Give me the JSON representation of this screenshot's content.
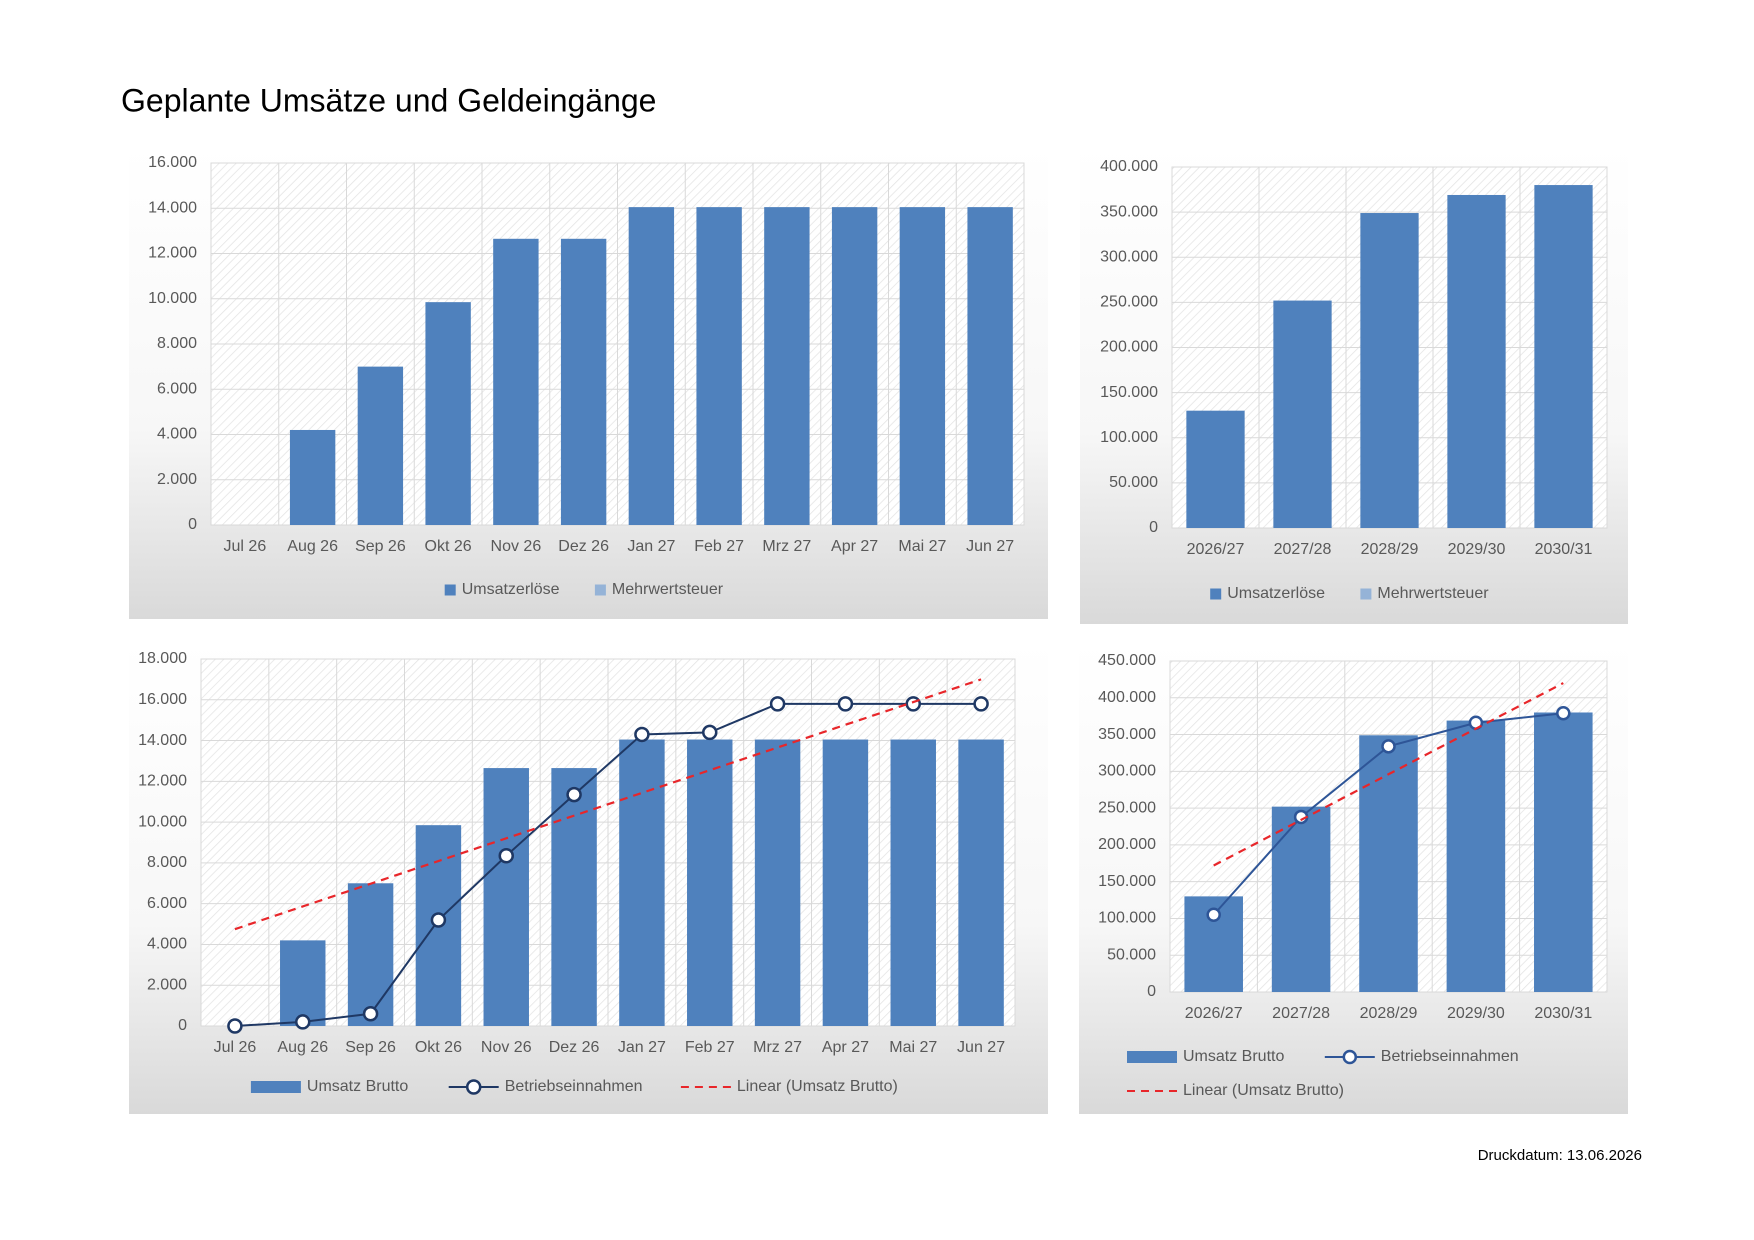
{
  "page": {
    "title": "Geplante Umsätze und Geldeingänge",
    "print_date": "Druckdatum: 13.06.2026"
  },
  "chart_data": [
    {
      "type": "bar",
      "stacked": true,
      "categories": [
        "Jul 26",
        "Aug 26",
        "Sep 26",
        "Okt 26",
        "Nov 26",
        "Dez 26",
        "Jan 27",
        "Feb 27",
        "Mrz 27",
        "Apr 27",
        "Mai 27",
        "Jun 27"
      ],
      "series": [
        {
          "name": "Umsatzerlöse",
          "color": "#4f81bd",
          "kind": "bar",
          "values": [
            0,
            4200,
            7000,
            9850,
            12650,
            12650,
            14050,
            14050,
            14050,
            14050,
            14050,
            14050
          ]
        },
        {
          "name": "Mehrwertsteuer",
          "color": "#95b3d7",
          "kind": "bar",
          "values": [
            0,
            0,
            0,
            0,
            0,
            0,
            0,
            0,
            0,
            0,
            0,
            0
          ]
        }
      ],
      "ylim": [
        0,
        16000
      ],
      "yticks": [
        0,
        {
          "value": 2000,
          "label": "2.000"
        },
        {
          "value": 4000,
          "label": "4.000"
        },
        {
          "value": 6000,
          "label": "6.000"
        },
        {
          "value": 8000,
          "label": "8.000"
        },
        {
          "value": 10000,
          "label": "10.000"
        },
        {
          "value": 12000,
          "label": "12.000"
        },
        {
          "value": 14000,
          "label": "14.000"
        },
        {
          "value": 16000,
          "label": "16.000"
        }
      ],
      "grid": true,
      "legend": "bottom"
    },
    {
      "type": "bar",
      "stacked": true,
      "categories": [
        "2026/27",
        "2027/28",
        "2028/29",
        "2029/30",
        "2030/31"
      ],
      "series": [
        {
          "name": "Umsatzerlöse",
          "color": "#4f81bd",
          "kind": "bar",
          "values": [
            130000,
            252000,
            349000,
            369000,
            380000
          ]
        },
        {
          "name": "Mehrwertsteuer",
          "color": "#95b3d7",
          "kind": "bar",
          "values": [
            0,
            0,
            0,
            0,
            0
          ]
        }
      ],
      "ylim": [
        0,
        400000
      ],
      "yticks": [
        0,
        {
          "value": 50000,
          "label": "50.000"
        },
        {
          "value": 100000,
          "label": "100.000"
        },
        {
          "value": 150000,
          "label": "150.000"
        },
        {
          "value": 200000,
          "label": "200.000"
        },
        {
          "value": 250000,
          "label": "250.000"
        },
        {
          "value": 300000,
          "label": "300.000"
        },
        {
          "value": 350000,
          "label": "350.000"
        },
        {
          "value": 400000,
          "label": "400.000"
        }
      ],
      "grid": true,
      "legend": "bottom"
    },
    {
      "type": "combo",
      "categories": [
        "Jul 26",
        "Aug 26",
        "Sep 26",
        "Okt 26",
        "Nov 26",
        "Dez 26",
        "Jan 27",
        "Feb 27",
        "Mrz 27",
        "Apr 27",
        "Mai 27",
        "Jun 27"
      ],
      "series": [
        {
          "name": "Umsatz Brutto",
          "color": "#4f81bd",
          "kind": "bar",
          "values": [
            0,
            4200,
            7000,
            9850,
            12650,
            12650,
            14050,
            14050,
            14050,
            14050,
            14050,
            14050
          ]
        },
        {
          "name": "Betriebseinnahmen",
          "color": "#1f3864",
          "kind": "line",
          "values": [
            0,
            200,
            600,
            5200,
            8350,
            11350,
            14300,
            14400,
            15800,
            15800,
            15800,
            15800
          ]
        },
        {
          "name": "Linear (Umsatz Brutto)",
          "color": "#e8262a",
          "kind": "trend",
          "values": [
            4750,
            5864,
            6977,
            8091,
            9205,
            10318,
            11432,
            12545,
            13659,
            14773,
            15886,
            17000
          ]
        }
      ],
      "ylim": [
        0,
        18000
      ],
      "yticks": [
        0,
        {
          "value": 2000,
          "label": "2.000"
        },
        {
          "value": 4000,
          "label": "4.000"
        },
        {
          "value": 6000,
          "label": "6.000"
        },
        {
          "value": 8000,
          "label": "8.000"
        },
        {
          "value": 10000,
          "label": "10.000"
        },
        {
          "value": 12000,
          "label": "12.000"
        },
        {
          "value": 14000,
          "label": "14.000"
        },
        {
          "value": 16000,
          "label": "16.000"
        },
        {
          "value": 18000,
          "label": "18.000"
        }
      ],
      "grid": true,
      "legend": "bottom"
    },
    {
      "type": "combo",
      "categories": [
        "2026/27",
        "2027/28",
        "2028/29",
        "2029/30",
        "2030/31"
      ],
      "series": [
        {
          "name": "Umsatz Brutto",
          "color": "#4f81bd",
          "kind": "bar",
          "values": [
            130000,
            252000,
            349000,
            369000,
            380000
          ]
        },
        {
          "name": "Betriebseinnahmen",
          "color": "#2e5597",
          "kind": "line",
          "values": [
            105000,
            238000,
            334000,
            366000,
            379000
          ]
        },
        {
          "name": "Linear (Umsatz Brutto)",
          "color": "#e8262a",
          "kind": "trend",
          "values": [
            172000,
            234000,
            296000,
            358000,
            420000
          ]
        }
      ],
      "ylim": [
        0,
        450000
      ],
      "yticks": [
        0,
        {
          "value": 50000,
          "label": "50.000"
        },
        {
          "value": 100000,
          "label": "100.000"
        },
        {
          "value": 150000,
          "label": "150.000"
        },
        {
          "value": 200000,
          "label": "200.000"
        },
        {
          "value": 250000,
          "label": "250.000"
        },
        {
          "value": 300000,
          "label": "300.000"
        },
        {
          "value": 350000,
          "label": "350.000"
        },
        {
          "value": 400000,
          "label": "400.000"
        },
        {
          "value": 450000,
          "label": "450.000"
        }
      ],
      "grid": true,
      "legend": "bottom"
    }
  ]
}
